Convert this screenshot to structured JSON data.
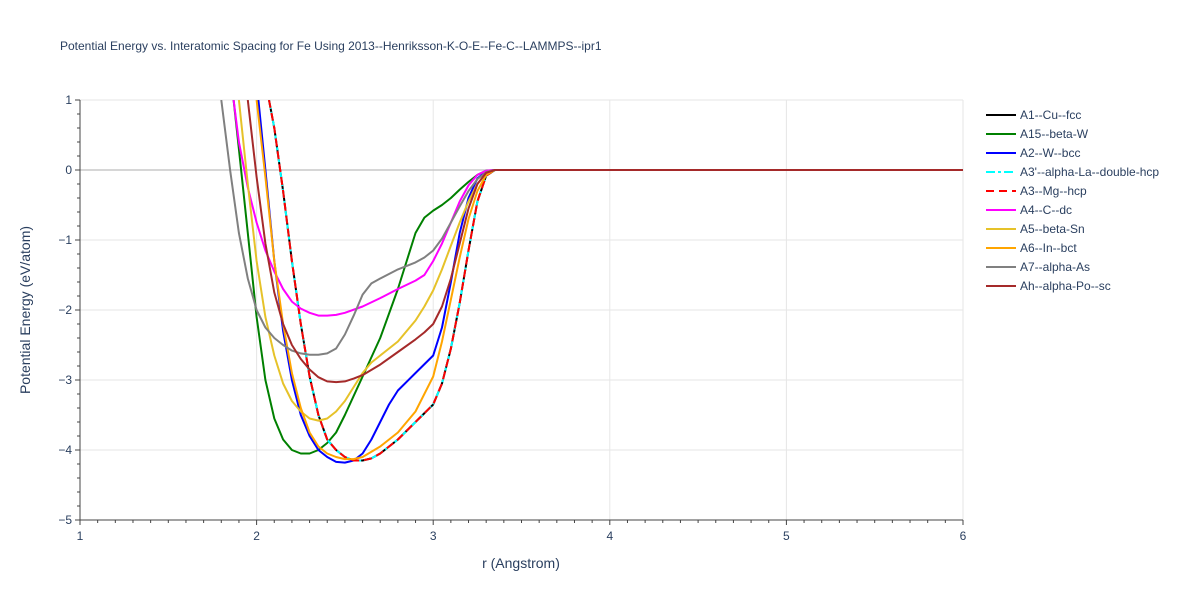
{
  "chart_data": {
    "type": "line",
    "title": "Potential Energy vs. Interatomic Spacing for Fe Using 2013--Henriksson-K-O-E--Fe-C--LAMMPS--ipr1",
    "xlabel": "r (Angstrom)",
    "ylabel": "Potential Energy (eV/atom)",
    "xlim": [
      1,
      6
    ],
    "ylim": [
      -5,
      1
    ],
    "xticks": [
      1,
      2,
      3,
      4,
      5,
      6
    ],
    "yticks": [
      1,
      0,
      -1,
      -2,
      -3,
      -4,
      -5
    ],
    "xtick_labels": [
      "1",
      "2",
      "3",
      "4",
      "5",
      "6"
    ],
    "ytick_labels": [
      "1",
      "0",
      "−1",
      "−2",
      "−3",
      "−4",
      "−5"
    ],
    "grid": true,
    "legend_position": "right",
    "series": [
      {
        "name": "A1--Cu--fcc",
        "color": "#000000",
        "dash": "solid",
        "x": [
          2.07,
          2.1,
          2.15,
          2.2,
          2.25,
          2.3,
          2.35,
          2.4,
          2.45,
          2.5,
          2.55,
          2.6,
          2.65,
          2.7,
          2.8,
          2.9,
          3.0,
          3.05,
          3.1,
          3.15,
          3.2,
          3.25,
          3.3,
          3.35,
          3.4,
          4.0,
          5.0,
          6.0
        ],
        "y": [
          1.0,
          0.6,
          -0.3,
          -1.3,
          -2.2,
          -2.95,
          -3.5,
          -3.85,
          -4.0,
          -4.1,
          -4.15,
          -4.15,
          -4.12,
          -4.05,
          -3.85,
          -3.6,
          -3.35,
          -3.05,
          -2.55,
          -1.9,
          -1.15,
          -0.45,
          -0.08,
          0.0,
          0.0,
          0.0,
          0.0,
          0.0
        ]
      },
      {
        "name": "A15--beta-W",
        "color": "#008000",
        "dash": "solid",
        "x": [
          1.87,
          1.9,
          1.95,
          2.0,
          2.05,
          2.1,
          2.15,
          2.2,
          2.25,
          2.3,
          2.35,
          2.4,
          2.45,
          2.5,
          2.6,
          2.7,
          2.8,
          2.85,
          2.9,
          2.95,
          3.0,
          3.05,
          3.1,
          3.15,
          3.2,
          3.25,
          3.3,
          3.35,
          3.4,
          4.0,
          5.0,
          6.0
        ],
        "y": [
          1.0,
          0.3,
          -0.9,
          -2.1,
          -3.0,
          -3.55,
          -3.85,
          -4.0,
          -4.05,
          -4.05,
          -4.0,
          -3.9,
          -3.75,
          -3.5,
          -2.95,
          -2.4,
          -1.7,
          -1.3,
          -0.9,
          -0.68,
          -0.58,
          -0.5,
          -0.4,
          -0.28,
          -0.17,
          -0.07,
          -0.01,
          0.0,
          0.0,
          0.0,
          0.0,
          0.0
        ]
      },
      {
        "name": "A2--W--bcc",
        "color": "#0000ff",
        "dash": "solid",
        "x": [
          2.01,
          2.05,
          2.1,
          2.15,
          2.2,
          2.25,
          2.3,
          2.35,
          2.4,
          2.45,
          2.5,
          2.55,
          2.6,
          2.65,
          2.7,
          2.75,
          2.8,
          2.9,
          3.0,
          3.05,
          3.1,
          3.15,
          3.2,
          3.25,
          3.3,
          3.35,
          3.4,
          4.0,
          5.0,
          6.0
        ],
        "y": [
          1.0,
          0.0,
          -1.3,
          -2.3,
          -3.0,
          -3.5,
          -3.8,
          -4.0,
          -4.1,
          -4.17,
          -4.18,
          -4.15,
          -4.05,
          -3.85,
          -3.6,
          -3.35,
          -3.15,
          -2.9,
          -2.65,
          -2.25,
          -1.6,
          -0.9,
          -0.4,
          -0.12,
          -0.02,
          0.0,
          0.0,
          0.0,
          0.0,
          0.0
        ]
      },
      {
        "name": "A3'--alpha-La--double-hcp",
        "color": "#00ffff",
        "dash": "dashdot",
        "x": [
          2.07,
          2.1,
          2.15,
          2.2,
          2.25,
          2.3,
          2.35,
          2.4,
          2.45,
          2.5,
          2.55,
          2.6,
          2.65,
          2.7,
          2.8,
          2.9,
          3.0,
          3.05,
          3.1,
          3.15,
          3.2,
          3.25,
          3.3,
          3.35,
          3.4,
          4.0,
          5.0,
          6.0
        ],
        "y": [
          1.0,
          0.6,
          -0.3,
          -1.3,
          -2.2,
          -2.95,
          -3.5,
          -3.85,
          -4.0,
          -4.1,
          -4.15,
          -4.15,
          -4.12,
          -4.05,
          -3.85,
          -3.6,
          -3.35,
          -3.05,
          -2.55,
          -1.9,
          -1.15,
          -0.45,
          -0.08,
          0.0,
          0.0,
          0.0,
          0.0,
          0.0
        ]
      },
      {
        "name": "A3--Mg--hcp",
        "color": "#ff0000",
        "dash": "dash",
        "x": [
          2.07,
          2.1,
          2.15,
          2.2,
          2.25,
          2.3,
          2.35,
          2.4,
          2.45,
          2.5,
          2.55,
          2.6,
          2.65,
          2.7,
          2.8,
          2.9,
          3.0,
          3.05,
          3.1,
          3.15,
          3.2,
          3.25,
          3.3,
          3.35,
          3.4,
          4.0,
          5.0,
          6.0
        ],
        "y": [
          1.0,
          0.6,
          -0.3,
          -1.3,
          -2.2,
          -2.95,
          -3.5,
          -3.85,
          -4.0,
          -4.1,
          -4.15,
          -4.15,
          -4.12,
          -4.05,
          -3.85,
          -3.6,
          -3.35,
          -3.05,
          -2.55,
          -1.9,
          -1.15,
          -0.45,
          -0.08,
          0.0,
          0.0,
          0.0,
          0.0,
          0.0
        ]
      },
      {
        "name": "A4--C--dc",
        "color": "#ff00ff",
        "dash": "solid",
        "x": [
          1.87,
          1.9,
          1.95,
          2.0,
          2.05,
          2.1,
          2.15,
          2.2,
          2.25,
          2.3,
          2.35,
          2.4,
          2.45,
          2.5,
          2.6,
          2.7,
          2.8,
          2.9,
          2.95,
          3.0,
          3.05,
          3.1,
          3.15,
          3.2,
          3.25,
          3.3,
          3.35,
          3.4,
          4.0,
          5.0,
          6.0
        ],
        "y": [
          1.0,
          0.4,
          -0.25,
          -0.75,
          -1.15,
          -1.45,
          -1.7,
          -1.88,
          -1.98,
          -2.04,
          -2.08,
          -2.08,
          -2.07,
          -2.04,
          -1.95,
          -1.83,
          -1.7,
          -1.58,
          -1.5,
          -1.3,
          -1.05,
          -0.75,
          -0.45,
          -0.22,
          -0.07,
          -0.01,
          0.0,
          0.0,
          0.0,
          0.0,
          0.0
        ]
      },
      {
        "name": "A5--beta-Sn",
        "color": "#e6c229",
        "dash": "solid",
        "x": [
          1.9,
          1.95,
          2.0,
          2.05,
          2.1,
          2.15,
          2.2,
          2.25,
          2.3,
          2.35,
          2.4,
          2.45,
          2.5,
          2.55,
          2.6,
          2.65,
          2.7,
          2.8,
          2.9,
          2.95,
          3.0,
          3.05,
          3.1,
          3.15,
          3.2,
          3.25,
          3.3,
          3.35,
          3.4,
          4.0,
          5.0,
          6.0
        ],
        "y": [
          1.0,
          -0.2,
          -1.3,
          -2.1,
          -2.65,
          -3.05,
          -3.3,
          -3.45,
          -3.55,
          -3.58,
          -3.55,
          -3.45,
          -3.3,
          -3.1,
          -2.9,
          -2.75,
          -2.65,
          -2.45,
          -2.15,
          -1.95,
          -1.72,
          -1.42,
          -1.08,
          -0.75,
          -0.45,
          -0.2,
          -0.05,
          0.0,
          0.0,
          0.0,
          0.0,
          0.0
        ]
      },
      {
        "name": "A6--In--bct",
        "color": "#ffa500",
        "dash": "solid",
        "x": [
          2.0,
          2.05,
          2.1,
          2.15,
          2.2,
          2.25,
          2.3,
          2.35,
          2.4,
          2.45,
          2.5,
          2.55,
          2.6,
          2.7,
          2.8,
          2.9,
          3.0,
          3.05,
          3.1,
          3.15,
          3.2,
          3.25,
          3.3,
          3.35,
          3.4,
          4.0,
          5.0,
          6.0
        ],
        "y": [
          1.0,
          -0.1,
          -1.3,
          -2.2,
          -2.9,
          -3.4,
          -3.75,
          -3.95,
          -4.05,
          -4.1,
          -4.13,
          -4.13,
          -4.1,
          -3.95,
          -3.75,
          -3.45,
          -2.95,
          -2.45,
          -1.85,
          -1.25,
          -0.7,
          -0.3,
          -0.07,
          0.0,
          0.0,
          0.0,
          0.0,
          0.0
        ]
      },
      {
        "name": "A7--alpha-As",
        "color": "#808080",
        "dash": "solid",
        "x": [
          1.8,
          1.85,
          1.9,
          1.95,
          2.0,
          2.05,
          2.1,
          2.15,
          2.2,
          2.25,
          2.3,
          2.35,
          2.4,
          2.45,
          2.5,
          2.55,
          2.6,
          2.65,
          2.7,
          2.8,
          2.9,
          2.95,
          3.0,
          3.05,
          3.1,
          3.15,
          3.2,
          3.25,
          3.3,
          3.35,
          3.4,
          4.0,
          5.0,
          6.0
        ],
        "y": [
          1.0,
          0.0,
          -0.9,
          -1.55,
          -2.0,
          -2.25,
          -2.4,
          -2.5,
          -2.58,
          -2.62,
          -2.64,
          -2.64,
          -2.62,
          -2.55,
          -2.35,
          -2.08,
          -1.78,
          -1.62,
          -1.55,
          -1.42,
          -1.32,
          -1.25,
          -1.15,
          -0.98,
          -0.75,
          -0.52,
          -0.3,
          -0.13,
          -0.03,
          0.0,
          0.0,
          0.0,
          0.0,
          0.0
        ]
      },
      {
        "name": "Ah--alpha-Po--sc",
        "color": "#a52a2a",
        "dash": "solid",
        "x": [
          1.95,
          2.0,
          2.05,
          2.1,
          2.15,
          2.2,
          2.25,
          2.3,
          2.35,
          2.4,
          2.45,
          2.5,
          2.55,
          2.6,
          2.7,
          2.8,
          2.9,
          2.95,
          3.0,
          3.05,
          3.1,
          3.15,
          3.2,
          3.25,
          3.3,
          3.35,
          3.4,
          4.0,
          5.0,
          6.0
        ],
        "y": [
          1.0,
          -0.1,
          -1.05,
          -1.75,
          -2.2,
          -2.5,
          -2.7,
          -2.85,
          -2.96,
          -3.02,
          -3.03,
          -3.02,
          -2.98,
          -2.93,
          -2.78,
          -2.6,
          -2.42,
          -2.32,
          -2.2,
          -1.95,
          -1.55,
          -1.05,
          -0.55,
          -0.2,
          -0.04,
          0.0,
          0.0,
          0.0,
          0.0,
          0.0
        ]
      }
    ]
  }
}
